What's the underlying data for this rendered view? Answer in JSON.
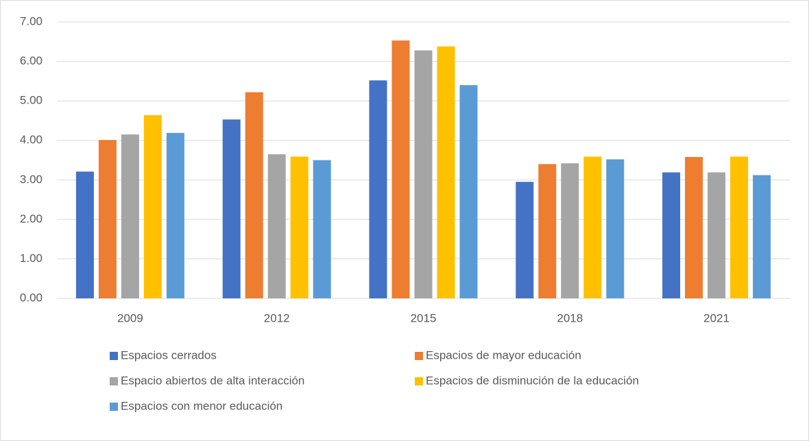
{
  "chart_data": {
    "type": "bar",
    "categories": [
      "2009",
      "2012",
      "2015",
      "2018",
      "2021"
    ],
    "series": [
      {
        "name": "Espacios cerrados",
        "color": "#4472c4",
        "values": [
          3.21,
          4.53,
          5.52,
          2.95,
          3.19
        ]
      },
      {
        "name": "Espacios de mayor educación",
        "color": "#ed7d31",
        "values": [
          4.01,
          5.22,
          6.53,
          3.4,
          3.58
        ]
      },
      {
        "name": "Espacio abiertos de alta interacción",
        "color": "#a5a5a5",
        "values": [
          4.15,
          3.65,
          6.28,
          3.42,
          3.19
        ]
      },
      {
        "name": "Espacios de disminución de la educación",
        "color": "#ffc000",
        "values": [
          4.64,
          3.59,
          6.38,
          3.59,
          3.59
        ]
      },
      {
        "name": "Espacios con menor educación",
        "color": "#5b9bd5",
        "values": [
          4.19,
          3.5,
          5.4,
          3.52,
          3.12
        ]
      }
    ],
    "ylim": [
      0,
      7
    ],
    "yticks": [
      {
        "value": 0,
        "label": "0.00"
      },
      {
        "value": 1,
        "label": "1.00"
      },
      {
        "value": 2,
        "label": "2.00"
      },
      {
        "value": 3,
        "label": "3.00"
      },
      {
        "value": 4,
        "label": "4.00"
      },
      {
        "value": 5,
        "label": "5.00"
      },
      {
        "value": 6,
        "label": "6.00"
      },
      {
        "value": 7,
        "label": "7.00"
      }
    ],
    "grid": true,
    "legend": "bottom"
  }
}
